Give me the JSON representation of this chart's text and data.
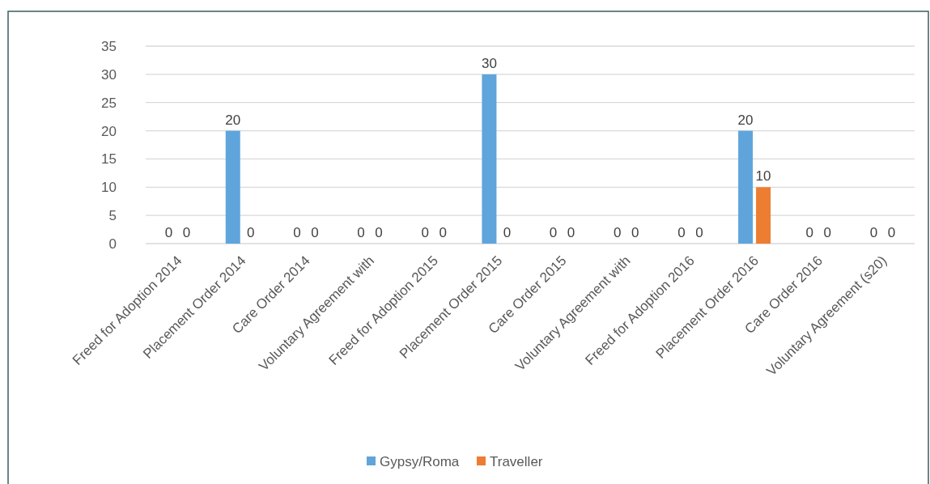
{
  "chart_data": {
    "type": "bar",
    "categories": [
      "Freed for Adoption 2014",
      "Placement Order 2014",
      "Care Order 2014",
      "Voluntary Agreement with",
      "Freed for Adoption 2015",
      "Placement Order 2015",
      "Care Order 2015",
      "Voluntary Agreement with",
      "Freed for Adoption 2016",
      "Placement Order 2016",
      "Care Order 2016",
      "Voluntary Agreement (s20)"
    ],
    "series": [
      {
        "name": "Gypsy/Roma",
        "color": "#5fa5dc",
        "values": [
          0,
          20,
          0,
          0,
          0,
          30,
          0,
          0,
          0,
          20,
          0,
          0
        ]
      },
      {
        "name": "Traveller",
        "color": "#ed7d31",
        "values": [
          0,
          0,
          0,
          0,
          0,
          0,
          0,
          0,
          0,
          10,
          0,
          0
        ]
      }
    ],
    "ylim": [
      0,
      35
    ],
    "yticks": [
      0,
      5,
      10,
      15,
      20,
      25,
      30,
      35
    ],
    "grid": "y",
    "legend": "bottom",
    "data_labels": true
  }
}
